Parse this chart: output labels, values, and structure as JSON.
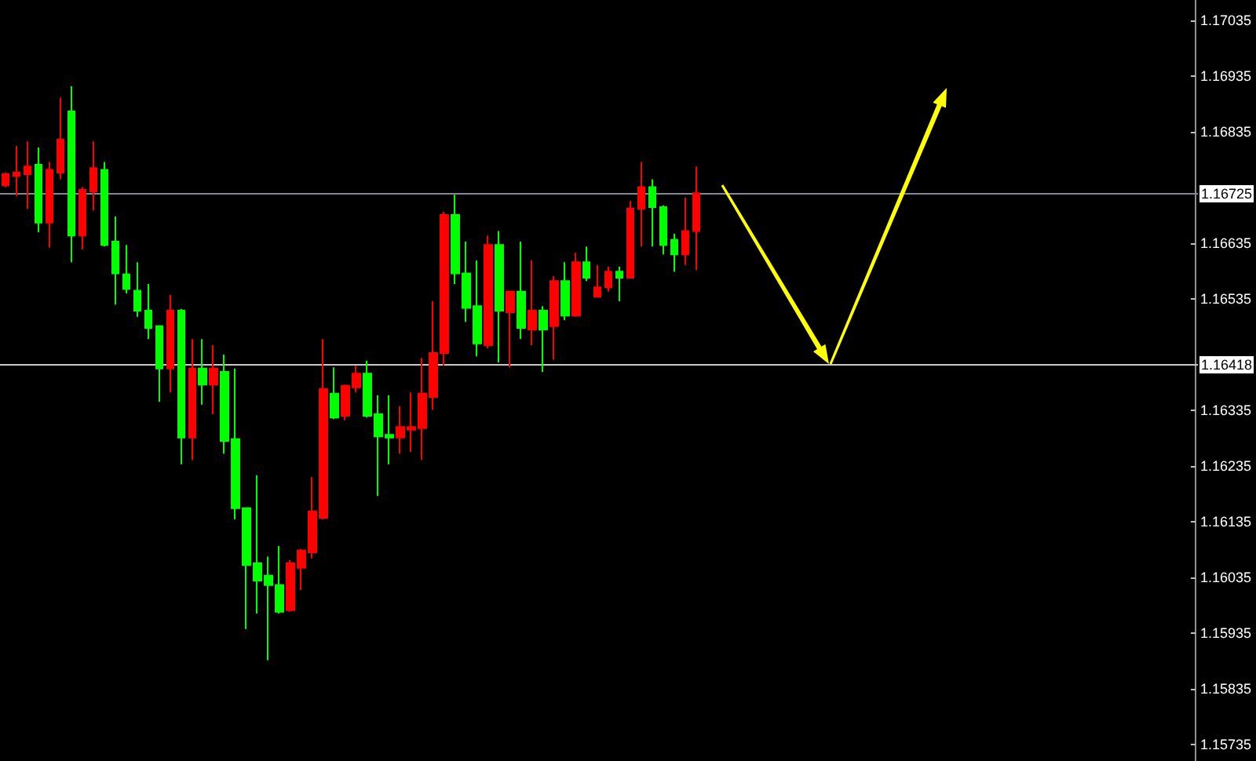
{
  "chart_data": {
    "type": "candlestick",
    "categories": [
      null,
      null,
      null,
      null,
      null,
      null,
      null,
      null,
      null,
      null,
      null,
      null,
      null,
      null,
      null,
      null,
      null,
      null,
      null,
      null,
      null,
      null,
      null,
      null,
      null,
      null,
      null,
      null,
      null,
      null,
      null,
      null,
      null,
      null,
      null,
      null,
      null,
      null,
      null,
      null,
      null,
      null,
      null,
      null,
      null,
      null,
      null,
      null,
      null,
      null,
      null,
      null,
      null,
      null,
      null,
      null,
      null,
      null,
      null,
      null,
      null,
      null,
      null,
      null,
      null,
      null,
      null,
      null,
      null,
      null,
      null,
      null,
      null,
      null,
      null,
      null,
      null,
      null,
      null,
      null,
      null,
      null,
      null,
      null,
      null,
      null,
      null,
      null,
      null,
      null,
      null,
      null,
      null,
      null,
      null,
      null,
      null,
      null,
      null,
      null,
      null,
      null,
      null,
      null,
      null,
      null,
      null,
      null,
      null
    ],
    "ohlc": [
      [
        1.16739,
        1.16762,
        1.16736,
        1.16759
      ],
      [
        1.16756,
        1.1681,
        1.1672,
        1.16762
      ],
      [
        1.16759,
        1.16818,
        1.16697,
        1.16773
      ],
      [
        1.16776,
        1.16807,
        1.16655,
        1.16672
      ],
      [
        1.16672,
        1.16781,
        1.16627,
        1.16767
      ],
      [
        1.16762,
        1.16897,
        1.1675,
        1.16821
      ],
      [
        1.16872,
        1.16917,
        1.16601,
        1.16649
      ],
      [
        1.16649,
        1.16736,
        1.16624,
        1.16731
      ],
      [
        1.16728,
        1.16818,
        1.16694,
        1.1677
      ],
      [
        1.16767,
        1.16781,
        1.16629,
        1.16632
      ],
      [
        1.16638,
        1.16683,
        1.16525,
        1.16581
      ],
      [
        1.16579,
        1.16632,
        1.16545,
        1.16553
      ],
      [
        1.1655,
        1.16601,
        1.16503,
        1.16514
      ],
      [
        1.16514,
        1.16562,
        1.16463,
        1.16483
      ],
      [
        1.16486,
        1.16488,
        1.1635,
        1.1641
      ],
      [
        1.1641,
        1.16542,
        1.16367,
        1.16514
      ],
      [
        1.16514,
        1.16517,
        1.16238,
        1.16286
      ],
      [
        1.16286,
        1.16463,
        1.16246,
        1.1641
      ],
      [
        1.1641,
        1.16463,
        1.16345,
        1.16381
      ],
      [
        1.16381,
        1.16452,
        1.16328,
        1.1641
      ],
      [
        1.16404,
        1.16435,
        1.16257,
        1.1628
      ],
      [
        1.16283,
        1.1641,
        1.16139,
        1.16159
      ],
      [
        1.16159,
        1.16159,
        1.15942,
        1.16057
      ],
      [
        1.1606,
        1.16218,
        1.1597,
        1.16029
      ],
      [
        1.16038,
        1.16072,
        1.15886,
        1.16021
      ],
      [
        1.16021,
        1.16091,
        1.1597,
        1.15973
      ],
      [
        1.15976,
        1.16066,
        1.15973,
        1.1606
      ],
      [
        1.16052,
        1.16086,
        1.16012,
        1.16083
      ],
      [
        1.1608,
        1.16215,
        1.16069,
        1.16153
      ],
      [
        1.16142,
        1.16463,
        1.16139,
        1.16373
      ],
      [
        1.16365,
        1.16412,
        1.16319,
        1.16322
      ],
      [
        1.16325,
        1.16381,
        1.16317,
        1.16379
      ],
      [
        1.16376,
        1.16415,
        1.16367,
        1.16401
      ],
      [
        1.16401,
        1.16424,
        1.16322,
        1.16325
      ],
      [
        1.16328,
        1.16362,
        1.16181,
        1.16288
      ],
      [
        1.16291,
        1.16362,
        1.16238,
        1.16286
      ],
      [
        1.16286,
        1.16342,
        1.16257,
        1.16305
      ],
      [
        1.163,
        1.16367,
        1.1626,
        1.16305
      ],
      [
        1.16303,
        1.16429,
        1.16246,
        1.16365
      ],
      [
        1.16359,
        1.16531,
        1.16336,
        1.16438
      ],
      [
        1.16438,
        1.16691,
        1.16415,
        1.16686
      ],
      [
        1.16686,
        1.16722,
        1.16562,
        1.16581
      ],
      [
        1.16581,
        1.16638,
        1.16494,
        1.16519
      ],
      [
        1.16522,
        1.16604,
        1.16432,
        1.16455
      ],
      [
        1.16452,
        1.16649,
        1.16446,
        1.16632
      ],
      [
        1.16632,
        1.16657,
        1.16421,
        1.16514
      ],
      [
        1.16511,
        1.16548,
        1.16412,
        1.16548
      ],
      [
        1.16548,
        1.16638,
        1.16463,
        1.16483
      ],
      [
        1.1648,
        1.16604,
        1.16452,
        1.16514
      ],
      [
        1.16514,
        1.16522,
        1.16404,
        1.1648
      ],
      [
        1.16486,
        1.16576,
        1.16426,
        1.16567
      ],
      [
        1.16567,
        1.16601,
        1.16497,
        1.16505
      ],
      [
        1.16505,
        1.16618,
        1.16503,
        1.16601
      ],
      [
        1.16601,
        1.16629,
        1.16567,
        1.16573
      ],
      [
        1.16539,
        1.16596,
        1.16539,
        1.16556
      ],
      [
        1.16556,
        1.16593,
        1.16548,
        1.16584
      ],
      [
        1.16584,
        1.16593,
        1.16531,
        1.16573
      ],
      [
        1.16573,
        1.16711,
        1.16573,
        1.16697
      ],
      [
        1.16697,
        1.16781,
        1.16629,
        1.16736
      ],
      [
        1.16736,
        1.1675,
        1.16629,
        1.167
      ],
      [
        1.167,
        1.16703,
        1.16615,
        1.16632
      ],
      [
        1.16641,
        1.16652,
        1.16584,
        1.16615
      ],
      [
        1.16615,
        1.16717,
        1.16596,
        1.16657
      ],
      [
        1.16657,
        1.16773,
        1.16587,
        1.16725
      ],
      null,
      null,
      null,
      null,
      null,
      null,
      null,
      null,
      null,
      null,
      null,
      null,
      null,
      null,
      null,
      null,
      null,
      null,
      null,
      null,
      null,
      null,
      null,
      null,
      null,
      null,
      null,
      null,
      null,
      null,
      null,
      null,
      null,
      null,
      null,
      null,
      null,
      null,
      null,
      null,
      null,
      null,
      null,
      null,
      null
    ],
    "colors": [
      "#ff0000",
      "#ff0000",
      "#ff0000",
      "#00ff00",
      "#ff0000",
      "#ff0000",
      "#00ff00",
      "#ff0000",
      "#ff0000",
      "#00ff00",
      "#00ff00",
      "#00ff00",
      "#00ff00",
      "#00ff00",
      "#00ff00",
      "#ff0000",
      "#00ff00",
      "#ff0000",
      "#00ff00",
      "#ff0000",
      "#00ff00",
      "#00ff00",
      "#00ff00",
      "#00ff00",
      "#00ff00",
      "#00ff00",
      "#ff0000",
      "#ff0000",
      "#ff0000",
      "#ff0000",
      "#00ff00",
      "#ff0000",
      "#ff0000",
      "#00ff00",
      "#00ff00",
      "#00ff00",
      "#ff0000",
      "#ff0000",
      "#ff0000",
      "#ff0000",
      "#ff0000",
      "#00ff00",
      "#00ff00",
      "#00ff00",
      "#ff0000",
      "#00ff00",
      "#ff0000",
      "#00ff00",
      "#ff0000",
      "#00ff00",
      "#ff0000",
      "#00ff00",
      "#ff0000",
      "#00ff00",
      "#ff0000",
      "#ff0000",
      "#00ff00",
      "#ff0000",
      "#ff0000",
      "#00ff00",
      "#00ff00",
      "#00ff00",
      "#ff0000",
      "#ff0000",
      null,
      null,
      null,
      null,
      null,
      null,
      null,
      null,
      null,
      null,
      null,
      null,
      null,
      null,
      null,
      null,
      null,
      null,
      null,
      null,
      null,
      null,
      null,
      null,
      null,
      null,
      null,
      null,
      null,
      null,
      null,
      null,
      null,
      null,
      null,
      null,
      null,
      null,
      null,
      null,
      null,
      null,
      null,
      null,
      null
    ],
    "ylim": [
      1.15705,
      1.17072
    ],
    "yticks": [
      1.17035,
      1.16935,
      1.16835,
      1.16635,
      1.16535,
      1.16335,
      1.16235,
      1.16135,
      1.16035,
      1.15935,
      1.15835,
      1.15735
    ],
    "ref_lines": [
      {
        "axis": "y",
        "value": 1.16725,
        "label": "1.16725",
        "color": "#7f8a99"
      },
      {
        "axis": "y",
        "value": 1.16418,
        "label": "1.16418",
        "color": "#c8c8c8"
      }
    ],
    "tick_labels": "y"
  }
}
